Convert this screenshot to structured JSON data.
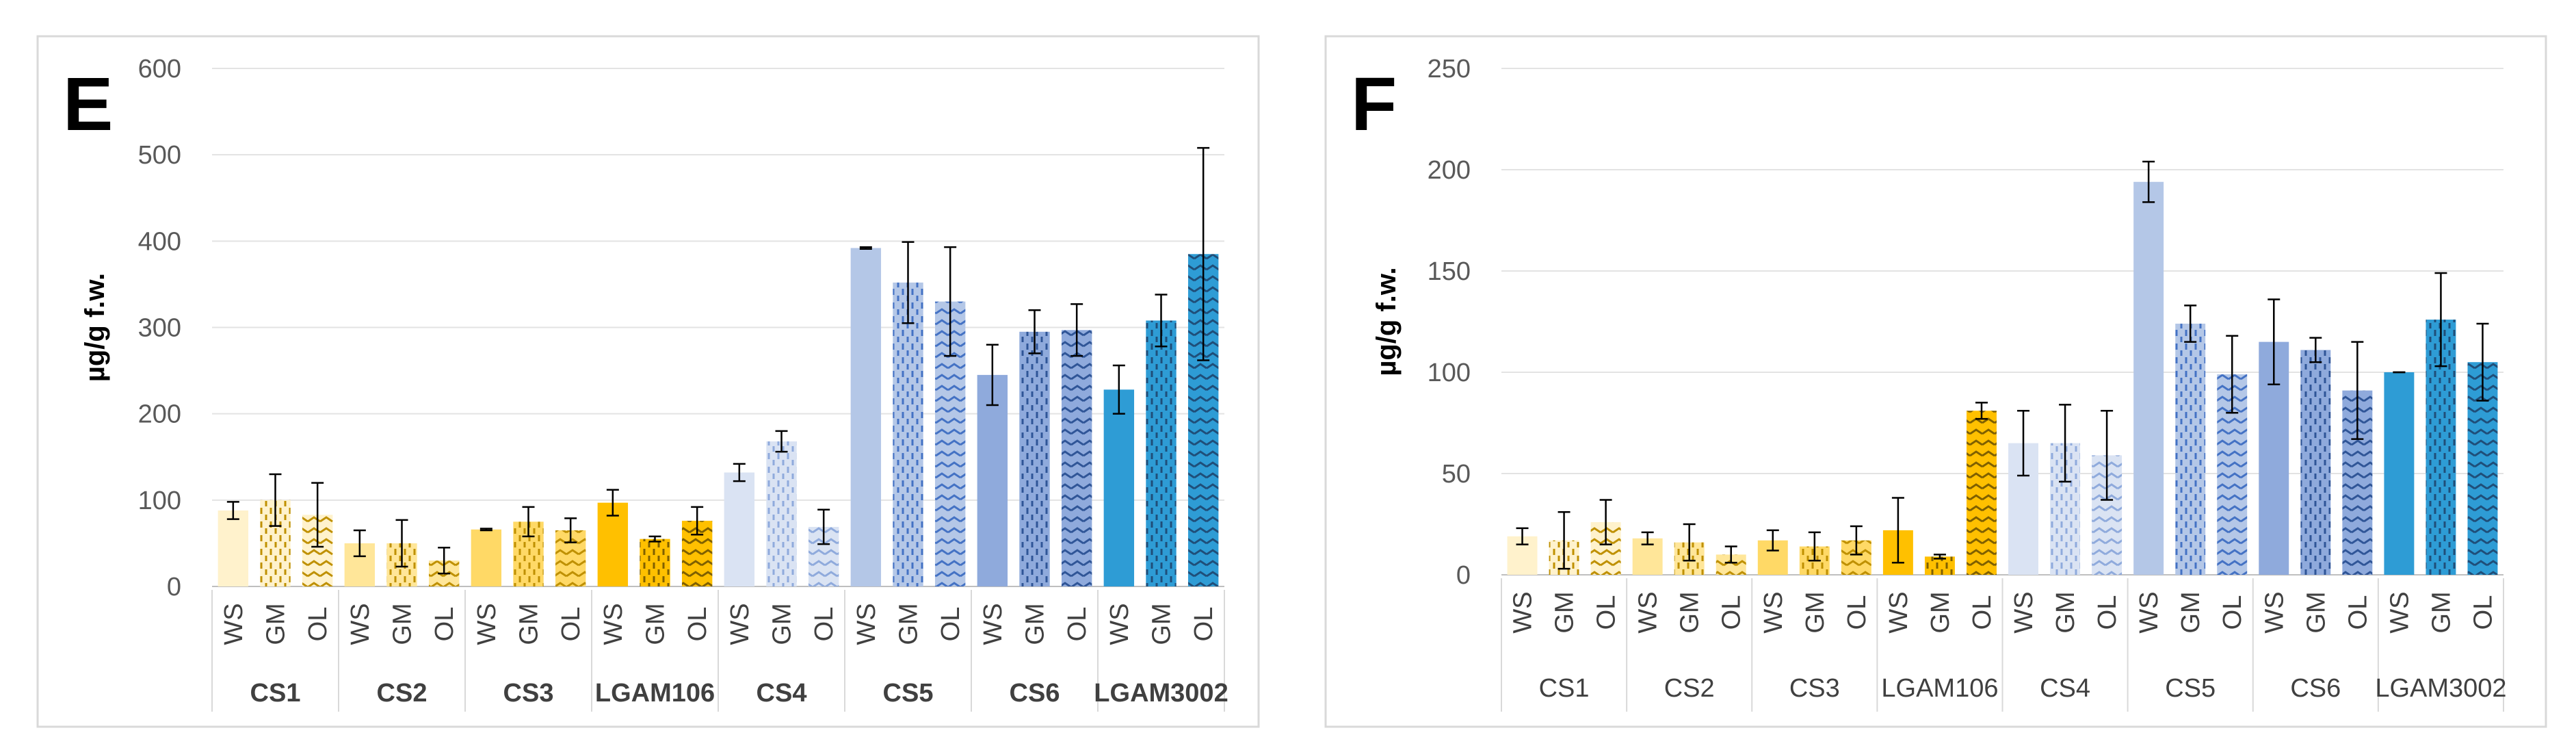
{
  "chart_data": [
    {
      "type": "bar",
      "panel_label": "E",
      "ylabel": "µg/g f.w.",
      "ylim": [
        0,
        600
      ],
      "yticks": [
        0,
        100,
        200,
        300,
        400,
        500,
        600
      ],
      "groups": [
        "CS1",
        "CS2",
        "CS3",
        "LGAM106",
        "CS4",
        "CS5",
        "CS6",
        "LGAM3002"
      ],
      "categories": [
        "WS",
        "GM",
        "OL"
      ],
      "colors": [
        "#FFF2CC",
        "#FFE699",
        "#FFD966",
        "#FFC000",
        "#DAE3F3",
        "#B4C7E7",
        "#8FAADC",
        "#2E9CD5"
      ],
      "pattern_stroke": [
        "#BF9000",
        "#BF9000",
        "#BF9000",
        "#7F6000",
        "#8FAADC",
        "#4472C4",
        "#2F5597",
        "#1F4E79"
      ],
      "values": [
        [
          88,
          100,
          83
        ],
        [
          50,
          50,
          30
        ],
        [
          66,
          75,
          65
        ],
        [
          97,
          55,
          76
        ],
        [
          132,
          168,
          69
        ],
        [
          392,
          352,
          330
        ],
        [
          245,
          295,
          297
        ],
        [
          228,
          308,
          385
        ]
      ],
      "errors": [
        [
          10,
          30,
          37
        ],
        [
          15,
          27,
          15
        ],
        [
          1,
          17,
          14
        ],
        [
          15,
          3,
          16
        ],
        [
          10,
          12,
          20
        ],
        [
          1,
          47,
          63
        ],
        [
          35,
          25,
          30
        ],
        [
          28,
          30,
          123
        ]
      ]
    },
    {
      "type": "bar",
      "panel_label": "F",
      "ylabel": "µg/g f.w.",
      "ylim": [
        0,
        250
      ],
      "yticks": [
        0,
        50,
        100,
        150,
        200,
        250
      ],
      "groups": [
        "CS1",
        "CS2",
        "CS3",
        "LGAM106",
        "CS4",
        "CS5",
        "CS6",
        "LGAM3002"
      ],
      "categories": [
        "WS",
        "GM",
        "OL"
      ],
      "colors": [
        "#FFF2CC",
        "#FFE699",
        "#FFD966",
        "#FFC000",
        "#DAE3F3",
        "#B4C7E7",
        "#8FAADC",
        "#2E9CD5"
      ],
      "pattern_stroke": [
        "#BF9000",
        "#BF9000",
        "#BF9000",
        "#7F6000",
        "#8FAADC",
        "#4472C4",
        "#2F5597",
        "#1F4E79"
      ],
      "values": [
        [
          19,
          17,
          26
        ],
        [
          18,
          16,
          10
        ],
        [
          17,
          14,
          17
        ],
        [
          22,
          9,
          81
        ],
        [
          65,
          65,
          59
        ],
        [
          194,
          124,
          99
        ],
        [
          115,
          111,
          91
        ],
        [
          100,
          126,
          105
        ]
      ],
      "errors": [
        [
          4,
          14,
          11
        ],
        [
          3,
          9,
          4
        ],
        [
          5,
          7,
          7
        ],
        [
          16,
          1,
          4
        ],
        [
          16,
          19,
          22
        ],
        [
          10,
          9,
          19
        ],
        [
          21,
          6,
          24
        ],
        [
          0,
          23,
          19
        ]
      ]
    }
  ]
}
